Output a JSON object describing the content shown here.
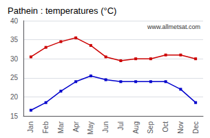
{
  "chart_data": {
    "type": "line",
    "title": "Pathein : temperatures (°C)",
    "categories": [
      "Jan",
      "Feb",
      "Mar",
      "Apr",
      "May",
      "Jun",
      "Jul",
      "Aug",
      "Sep",
      "Oct",
      "Nov",
      "Dec"
    ],
    "series": [
      {
        "color": "#cc0000",
        "marker": "square",
        "values": [
          30.5,
          33.0,
          34.5,
          35.5,
          33.5,
          30.5,
          29.5,
          30.0,
          30.0,
          31.0,
          31.0,
          30.0
        ]
      },
      {
        "color": "#0000cc",
        "marker": "square",
        "values": [
          16.5,
          18.5,
          21.5,
          24.0,
          25.5,
          24.5,
          24.0,
          24.0,
          24.0,
          24.0,
          22.0,
          18.5
        ]
      }
    ],
    "ylim": [
      15,
      40
    ],
    "yticks": [
      15,
      20,
      25,
      30,
      35,
      40
    ],
    "grid": true,
    "annotation": "www.allmetsat.com"
  }
}
